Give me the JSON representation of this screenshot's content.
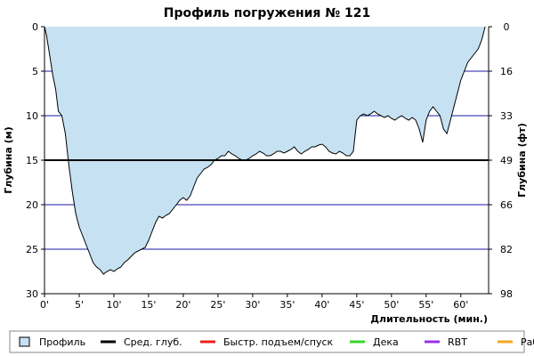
{
  "chart_data": {
    "type": "area",
    "title": "Профиль погружения № 121",
    "xlabel": "Длительность (мин.)",
    "ylabel_left": "Глубина (м)",
    "ylabel_right": "Глубина (фт)",
    "xlim": [
      0,
      64
    ],
    "ylim": [
      0,
      30
    ],
    "y_inverted": true,
    "x_ticks": [
      0,
      5,
      10,
      15,
      20,
      25,
      30,
      35,
      40,
      45,
      50,
      55,
      60
    ],
    "x_tick_labels": [
      "0'",
      "5'",
      "10'",
      "15'",
      "20'",
      "25'",
      "30'",
      "35'",
      "40'",
      "45'",
      "50'",
      "55'",
      "60'"
    ],
    "y_ticks_left": [
      0,
      5,
      10,
      15,
      20,
      25,
      30
    ],
    "y_ticks_left_labels": [
      "0",
      "5",
      "10",
      "15",
      "20",
      "25",
      "30"
    ],
    "y_ticks_right": [
      0,
      5,
      10,
      15,
      20,
      25,
      30
    ],
    "y_ticks_right_labels": [
      "0",
      "16",
      "33",
      "49",
      "66",
      "82",
      "98"
    ],
    "grid": "horizontal",
    "average_depth": 15,
    "fill_color": "#c6e2f2",
    "line_color": "#000000",
    "grid_color": "#1a1aa8",
    "series": [
      {
        "name": "Профиль",
        "x": [
          0,
          0.3,
          0.7,
          1.2,
          1.6,
          2.0,
          2.5,
          3.0,
          3.5,
          4.0,
          4.5,
          5.0,
          5.5,
          6.0,
          6.5,
          7.0,
          7.5,
          8.0,
          8.5,
          9.0,
          9.5,
          10.0,
          10.5,
          11.0,
          11.5,
          12.0,
          12.5,
          13.0,
          13.5,
          14.0,
          14.5,
          15.0,
          15.5,
          16.0,
          16.5,
          17.0,
          17.5,
          18.0,
          18.5,
          19.0,
          19.5,
          20.0,
          20.5,
          21.0,
          21.5,
          22.0,
          22.5,
          23.0,
          23.5,
          24.0,
          24.5,
          25.0,
          25.5,
          26.0,
          26.5,
          27.0,
          27.5,
          28.0,
          28.5,
          29.0,
          29.5,
          30.0,
          30.5,
          31.0,
          31.5,
          32.0,
          32.5,
          33.0,
          33.5,
          34.0,
          34.5,
          35.0,
          35.5,
          36.0,
          36.5,
          37.0,
          37.5,
          38.0,
          38.5,
          39.0,
          39.5,
          40.0,
          40.5,
          41.0,
          41.5,
          42.0,
          42.5,
          43.0,
          43.5,
          44.0,
          44.5,
          45.0,
          45.5,
          46.0,
          46.5,
          47.0,
          47.5,
          48.0,
          48.5,
          49.0,
          49.5,
          50.0,
          50.5,
          51.0,
          51.5,
          52.0,
          52.5,
          53.0,
          53.5,
          54.0,
          54.5,
          55.0,
          55.5,
          56.0,
          56.5,
          57.0,
          57.5,
          58.0,
          58.5,
          59.0,
          59.5,
          60.0,
          60.5,
          61.0,
          61.5,
          62.0,
          62.5,
          63.0,
          63.5
        ],
        "y": [
          0,
          1.0,
          3.0,
          5.5,
          7.0,
          9.5,
          10.0,
          12.0,
          15.5,
          18.5,
          21.0,
          22.5,
          23.5,
          24.5,
          25.5,
          26.5,
          27.0,
          27.3,
          27.8,
          27.5,
          27.3,
          27.5,
          27.2,
          27.0,
          26.5,
          26.2,
          25.8,
          25.4,
          25.2,
          25.0,
          24.8,
          24.0,
          23.0,
          22.0,
          21.3,
          21.5,
          21.2,
          21.0,
          20.5,
          20.0,
          19.5,
          19.2,
          19.5,
          19.0,
          18.0,
          17.0,
          16.5,
          16.0,
          15.8,
          15.5,
          15.0,
          14.8,
          14.5,
          14.5,
          14.0,
          14.3,
          14.5,
          14.8,
          15.0,
          15.0,
          14.8,
          14.5,
          14.3,
          14.0,
          14.2,
          14.5,
          14.5,
          14.3,
          14.0,
          14.0,
          14.2,
          14.0,
          13.8,
          13.5,
          14.0,
          14.3,
          14.0,
          13.8,
          13.5,
          13.5,
          13.3,
          13.2,
          13.5,
          14.0,
          14.2,
          14.3,
          14.0,
          14.2,
          14.5,
          14.5,
          14.0,
          10.5,
          10.0,
          9.8,
          10.0,
          9.8,
          9.5,
          9.8,
          10.0,
          10.2,
          10.0,
          10.3,
          10.5,
          10.2,
          10.0,
          10.3,
          10.5,
          10.2,
          10.5,
          11.5,
          13.0,
          10.5,
          9.5,
          9.0,
          9.5,
          10.0,
          11.5,
          12.0,
          10.5,
          9.0,
          7.5,
          6.0,
          5.0,
          4.0,
          3.5,
          3.0,
          2.5,
          1.5,
          0
        ]
      }
    ],
    "legend": [
      {
        "label": "Профиль",
        "color": "#c6e2f2",
        "kind": "box"
      },
      {
        "label": "Сред. глуб.",
        "color": "#000000",
        "kind": "line"
      },
      {
        "label": "Быстр. подъем/спуск",
        "color": "#e8211a",
        "kind": "line"
      },
      {
        "label": "Дека",
        "color": "#35d52b",
        "kind": "line"
      },
      {
        "label": "RBT",
        "color": "#9b30e6",
        "kind": "line"
      },
      {
        "label": "Раб.",
        "color": "#f5a623",
        "kind": "line"
      }
    ],
    "legend_position": "bottom"
  }
}
